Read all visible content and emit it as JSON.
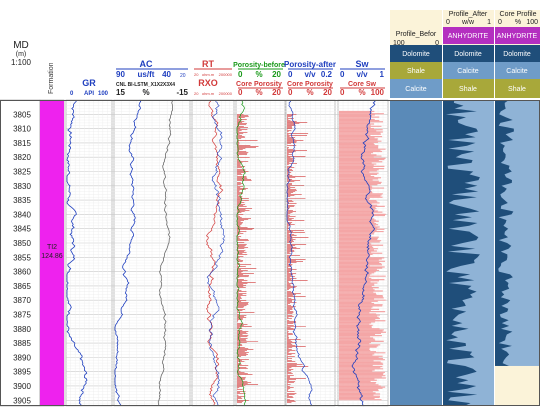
{
  "chart_data": {
    "type": "well-log",
    "depth_header": {
      "md_label": "MD",
      "md_unit": "(m)",
      "scale": "1:100"
    },
    "depth_ticks": [
      "3805",
      "3810",
      "3815",
      "3820",
      "3825",
      "3830",
      "3835",
      "3840",
      "3845",
      "3850",
      "3855",
      "3860",
      "3865",
      "3870",
      "3875",
      "3880",
      "3885",
      "3890",
      "3895",
      "3900",
      "3905"
    ],
    "depth_range": [
      3800,
      3907
    ],
    "formation": {
      "header": "Formation",
      "name": "TI2",
      "value": "124.86"
    },
    "tracks": {
      "gr": {
        "name": "GR",
        "unit": "API",
        "min": "0",
        "max": "100",
        "color": "#1f3fbf"
      },
      "ac": {
        "name": "AC",
        "unit": "us/ft",
        "min": "90",
        "max": "40",
        "note": "20",
        "color": "#1f3fbf",
        "sub": "CNL BI-LSTM_X1X2X3X4",
        "sub_unit": "%",
        "sub_min": "15",
        "sub_max": "-15"
      },
      "rt": {
        "name": "RT",
        "unit": "ohm.m",
        "min": "20",
        "max": "200000",
        "rxo": "RXO",
        "color": "#d23a3a"
      },
      "por_before": {
        "name": "Porosity-before",
        "unit": "%",
        "min": "0",
        "max": "20",
        "core": "Core Porosity",
        "core_unit": "%",
        "core_min": "0",
        "core_max": "20",
        "color": "#1a9a1a"
      },
      "por_after": {
        "name": "Porosity-after",
        "unit": "v/v",
        "min": "0",
        "max": "0.2",
        "core": "Core Porosity",
        "core_unit": "%",
        "core_min": "0",
        "core_max": "20",
        "color": "#1f3fbf"
      },
      "sw": {
        "name": "Sw",
        "unit": "v/v",
        "min": "0",
        "max": "1",
        "core": "Core Sw",
        "core_unit": "%",
        "core_min": "0",
        "core_max": "100",
        "color": "#1f3fbf"
      }
    },
    "profiles": [
      {
        "title": "Profile_Befor",
        "scale_min": "100",
        "scale_mid": "",
        "scale_max": "0",
        "unit": "",
        "top": "",
        "legend": [
          "Dolomite",
          "Shale",
          "Calcite"
        ]
      },
      {
        "title": "Profile_After",
        "scale_min": "0",
        "scale_mid": "w/w",
        "scale_max": "1",
        "unit": "",
        "top": "ANHYDRITE",
        "legend": [
          "Dolomite",
          "Calcite",
          "Shale"
        ]
      },
      {
        "title": "Core Profile",
        "scale_min": "0",
        "scale_mid": "%",
        "scale_max": "100",
        "unit": "",
        "top": "ANHYDRITE",
        "legend": [
          "Dolomite",
          "Calcite",
          "Shale"
        ]
      }
    ],
    "colors": {
      "dolomite": "#5a8ab8",
      "dark_dolomite": "#1f4e7a",
      "shale": "#a8a83a",
      "calcite": "#6f9cc8",
      "anhydrite": "#b42fc0",
      "formation": "#ee22ee",
      "core_fill": "#f4a6a6",
      "header_bg": "#fbf3d9"
    },
    "grid": true
  }
}
